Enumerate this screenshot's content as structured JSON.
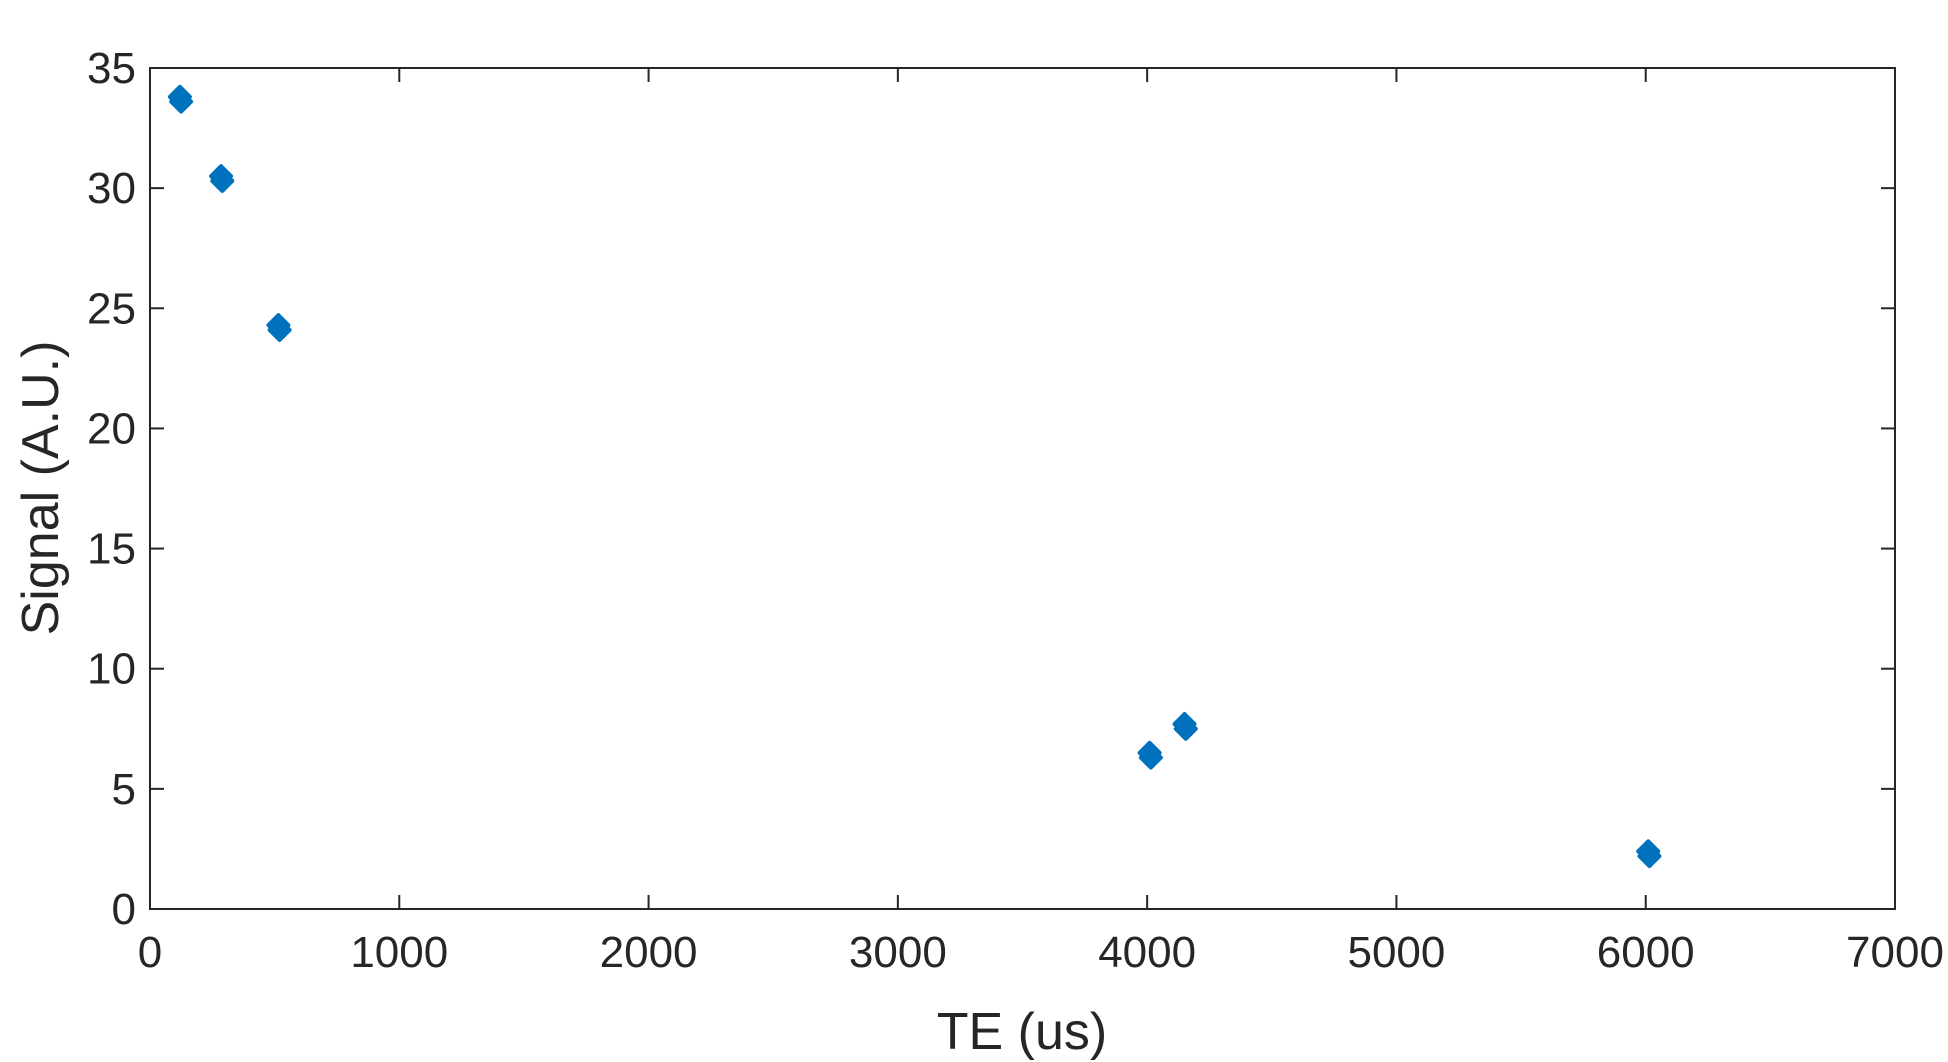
{
  "chart_data": {
    "type": "scatter",
    "title": "",
    "xlabel": "TE (us)",
    "ylabel": "Signal (A.U.)",
    "xlim": [
      0,
      7000
    ],
    "ylim": [
      0,
      35
    ],
    "xticks": [
      "0",
      "1000",
      "2000",
      "3000",
      "4000",
      "5000",
      "6000",
      "7000"
    ],
    "yticks": [
      "0",
      "5",
      "10",
      "15",
      "20",
      "25",
      "30",
      "35"
    ],
    "grid": false,
    "marker_color": "#0072BD",
    "series": [
      {
        "points": [
          {
            "x": 120,
            "y": 33.8
          },
          {
            "x": 125,
            "y": 33.6
          },
          {
            "x": 285,
            "y": 30.5
          },
          {
            "x": 290,
            "y": 30.3
          },
          {
            "x": 515,
            "y": 24.3
          },
          {
            "x": 520,
            "y": 24.1
          },
          {
            "x": 4010,
            "y": 6.5
          },
          {
            "x": 4015,
            "y": 6.3
          },
          {
            "x": 4150,
            "y": 7.7
          },
          {
            "x": 4155,
            "y": 7.5
          },
          {
            "x": 6010,
            "y": 2.4
          },
          {
            "x": 6015,
            "y": 2.2
          }
        ]
      }
    ]
  }
}
